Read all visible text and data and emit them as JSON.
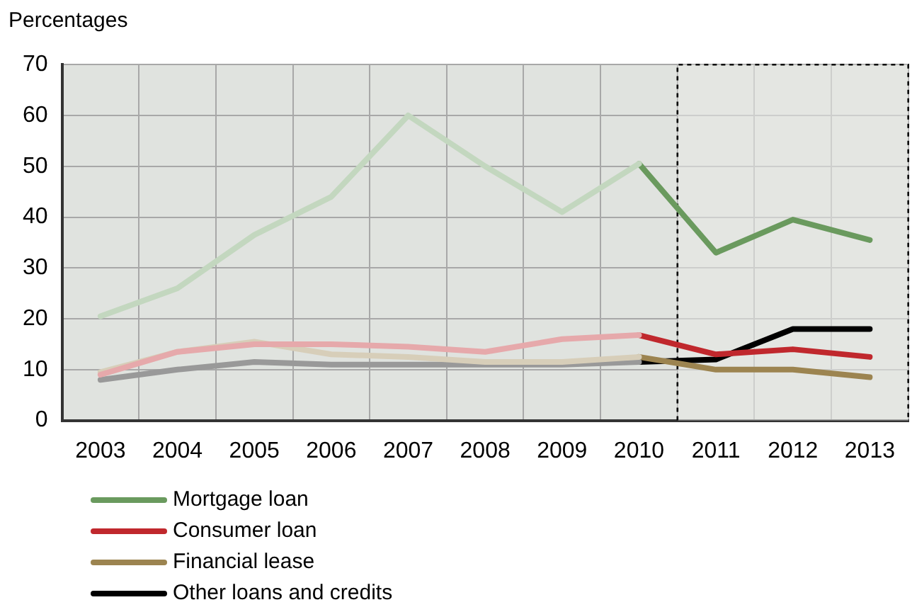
{
  "chart_data": {
    "type": "line",
    "ylabel": "Percentages",
    "categories": [
      "2003",
      "2004",
      "2005",
      "2006",
      "2007",
      "2008",
      "2009",
      "2010",
      "2011",
      "2012",
      "2013"
    ],
    "series": [
      {
        "color": "#c3d7bf",
        "values": [
          20.5,
          26,
          36.5,
          44,
          60,
          50,
          41,
          50.5,
          null,
          null,
          null
        ]
      },
      {
        "color": "#e6a9ab",
        "values": [
          9,
          13.5,
          15,
          15,
          14.5,
          13.5,
          16,
          16.8,
          null,
          null,
          null
        ]
      },
      {
        "color": "#d7ceb9",
        "values": [
          9.5,
          13.5,
          15.5,
          13,
          12.5,
          11.5,
          11.5,
          12.5,
          null,
          null,
          null
        ]
      },
      {
        "color": "#999999",
        "values": [
          8,
          10,
          11.5,
          11,
          11,
          11,
          11,
          11.5,
          null,
          null,
          null
        ]
      },
      {
        "name": "Mortgage loan",
        "color": "#6a9a5e",
        "values": [
          null,
          null,
          null,
          null,
          null,
          null,
          null,
          50.5,
          33,
          39.5,
          35.5
        ]
      },
      {
        "name": "Consumer loan",
        "color": "#c0282d",
        "values": [
          null,
          null,
          null,
          null,
          null,
          null,
          null,
          16.8,
          13,
          14,
          12.5
        ]
      },
      {
        "name": "Financial lease",
        "color": "#9c8450",
        "values": [
          null,
          null,
          null,
          null,
          null,
          null,
          null,
          12.5,
          10,
          10,
          8.5
        ]
      },
      {
        "name": "Other loans and credits",
        "color": "#000000",
        "values": [
          null,
          null,
          null,
          null,
          null,
          null,
          null,
          11.5,
          12,
          18,
          18
        ]
      }
    ],
    "ylim": [
      0,
      70
    ],
    "yticks": [
      0,
      10,
      20,
      30,
      40,
      50,
      60,
      70
    ],
    "bands": [
      {
        "axis": "x",
        "from": "2011",
        "to": "2013",
        "color": "#e6e8e5"
      }
    ],
    "grid": true,
    "legend": "bottom",
    "line_style": "solid",
    "marker": "none"
  }
}
